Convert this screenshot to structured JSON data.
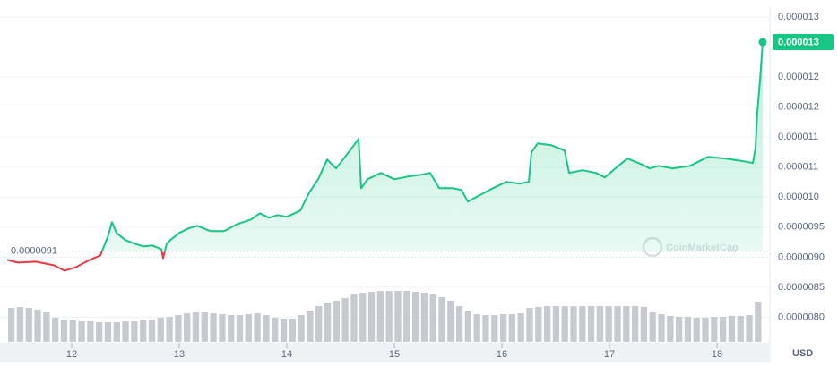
{
  "chart_data": {
    "type": "line",
    "series": [
      {
        "name": "USD",
        "color": "#16c784",
        "below_color": "#ea3943",
        "x": [
          11.4,
          11.5,
          11.667,
          11.833,
          11.933,
          12.042,
          12.167,
          12.267,
          12.333,
          12.375,
          12.417,
          12.5,
          12.583,
          12.667,
          12.75,
          12.833,
          12.85,
          12.883,
          12.917,
          13,
          13.083,
          13.167,
          13.292,
          13.417,
          13.542,
          13.667,
          13.75,
          13.833,
          13.917,
          14,
          14.125,
          14.208,
          14.292,
          14.375,
          14.458,
          14.542,
          14.625,
          14.667,
          14.692,
          14.75,
          14.875,
          15,
          15.125,
          15.25,
          15.333,
          15.417,
          15.542,
          15.625,
          15.683,
          15.792,
          15.917,
          16.042,
          16.167,
          16.25,
          16.275,
          16.333,
          16.458,
          16.583,
          16.625,
          16.75,
          16.875,
          16.958,
          17.083,
          17.167,
          17.292,
          17.375,
          17.458,
          17.583,
          17.75,
          17.917,
          18.083,
          18.25,
          18.333,
          18.358,
          18.375,
          18.4,
          18.425
        ],
        "values": [
          8.955e-06,
          8.91e-06,
          8.925e-06,
          8.866e-06,
          8.776e-06,
          8.836e-06,
          8.955e-06,
          9.03e-06,
          9.328e-06,
          9.582e-06,
          9.403e-06,
          9.284e-06,
          9.224e-06,
          9.179e-06,
          9.194e-06,
          9.134e-06,
          8.985e-06,
          9.224e-06,
          9.284e-06,
          9.403e-06,
          9.478e-06,
          9.522e-06,
          9.433e-06,
          9.433e-06,
          9.552e-06,
          9.627e-06,
          9.731e-06,
          9.657e-06,
          9.701e-06,
          9.672e-06,
          9.776e-06,
          1.0075e-05,
          1.0298e-05,
          1.0627e-05,
          1.0478e-05,
          1.0672e-05,
          1.0866e-05,
          1.097e-05,
          1.0149e-05,
          1.0298e-05,
          1.0403e-05,
          1.0298e-05,
          1.0343e-05,
          1.0373e-05,
          1.0403e-05,
          1.0149e-05,
          1.0149e-05,
          1.0119e-05,
          9.925e-06,
          1.003e-05,
          1.0149e-05,
          1.0254e-05,
          1.0224e-05,
          1.0254e-05,
          1.0746e-05,
          1.0895e-05,
          1.0866e-05,
          1.0776e-05,
          1.0403e-05,
          1.0448e-05,
          1.0403e-05,
          1.0328e-05,
          1.0522e-05,
          1.0642e-05,
          1.0552e-05,
          1.0478e-05,
          1.0522e-05,
          1.0478e-05,
          1.0522e-05,
          1.0672e-05,
          1.0642e-05,
          1.0597e-05,
          1.0567e-05,
          1.0821e-05,
          1.1418e-05,
          1.194e-05,
          1.2582e-05
        ]
      }
    ],
    "volume": {
      "color": "#c7cbd1",
      "values": [
        38,
        39,
        38,
        36,
        33,
        27,
        25,
        24,
        23,
        23,
        22,
        22,
        22,
        23,
        23,
        24,
        25,
        27,
        28,
        30,
        32,
        33,
        33,
        32,
        31,
        30,
        30,
        31,
        32,
        30,
        27,
        26,
        26,
        30,
        35,
        40,
        44,
        46,
        49,
        53,
        55,
        56,
        57,
        57,
        57,
        57,
        56,
        55,
        53,
        50,
        46,
        40,
        34,
        31,
        30,
        30,
        31,
        31,
        32,
        38,
        39,
        40,
        40,
        40,
        40,
        40,
        40,
        40,
        40,
        40,
        40,
        40,
        39,
        33,
        31,
        29,
        28,
        28,
        27,
        27,
        28,
        28,
        29,
        29,
        30,
        45
      ]
    },
    "xlim": [
      11.4,
      18.425
    ],
    "xticks": [
      12,
      13,
      14,
      15,
      16,
      17,
      18
    ],
    "ylim": [
      7.5e-06,
      1.3e-05
    ],
    "yticks": [
      1.3e-05,
      1.2e-05,
      {
        "value": 1.15e-05,
        "label": "0.000012"
      },
      1.1e-05,
      {
        "value": 1.05e-05,
        "label": "0.000011"
      },
      {
        "value": 1e-05,
        "label": "0.000010"
      },
      9.5e-06,
      {
        "value": 9e-06,
        "label": "0.0000090"
      },
      8.5e-06,
      {
        "value": 8e-06,
        "label": "0.0000080"
      }
    ],
    "reference": {
      "value": 9.1e-06,
      "label": "0.0000091"
    },
    "last_price_label": "0.000013",
    "y_axis_label": "USD",
    "watermark": "CoinMarketCap",
    "grid": true
  }
}
